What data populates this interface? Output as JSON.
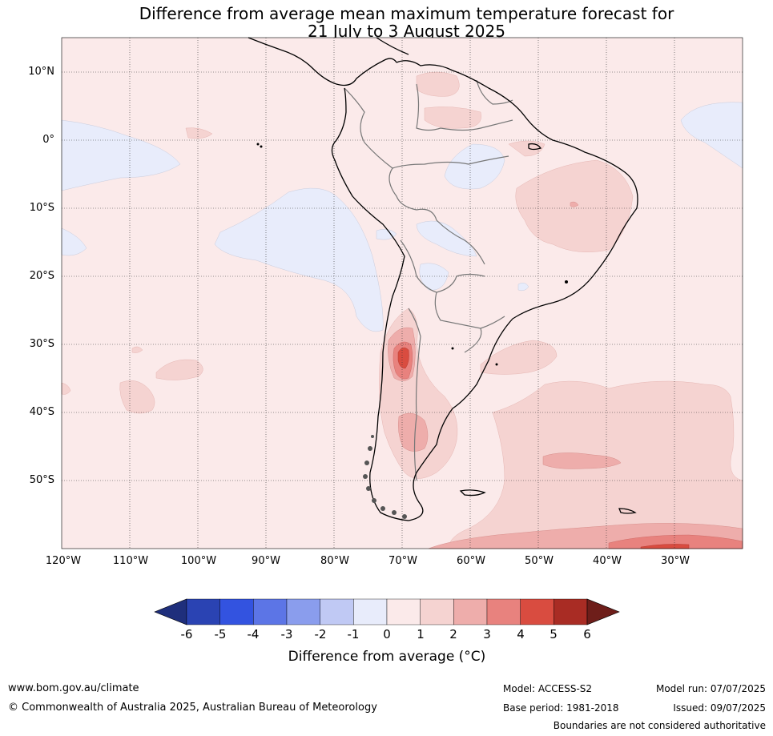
{
  "title": {
    "line1": "Difference from average mean maximum temperature forecast for",
    "line2": "21 July to 3 August 2025"
  },
  "map": {
    "latitude_labels": [
      "10°N",
      "0°",
      "10°S",
      "20°S",
      "30°S",
      "40°S",
      "50°S"
    ],
    "longitude_labels": [
      "120°W",
      "110°W",
      "100°W",
      "90°W",
      "80°W",
      "70°W",
      "60°W",
      "50°W",
      "40°W",
      "30°W"
    ],
    "regions_shown": "South America and surrounding oceans"
  },
  "colorbar": {
    "ticks": [
      "-6",
      "-5",
      "-4",
      "-3",
      "-2",
      "-1",
      "0",
      "1",
      "2",
      "3",
      "4",
      "5",
      "6"
    ],
    "colors": [
      "#1f2f7c",
      "#2a43b3",
      "#3353e0",
      "#5c75e6",
      "#8a9ded",
      "#c0c9f4",
      "#e8ecfb",
      "#fbeaea",
      "#f5d3d1",
      "#eeadab",
      "#e8827e",
      "#d94c40",
      "#a92c24",
      "#6e1e1a"
    ],
    "label": "Difference from average (°C)"
  },
  "footer": {
    "website": "www.bom.gov.au/climate",
    "copyright": "© Commonwealth of Australia 2025, Australian Bureau of Meteorology",
    "model": "Model: ACCESS-S2",
    "base_period": "Base period: 1981-2018",
    "model_run": "Model run: 07/07/2025",
    "issued": "Issued: 09/07/2025",
    "disclaimer": "Boundaries are not considered authoritative"
  }
}
